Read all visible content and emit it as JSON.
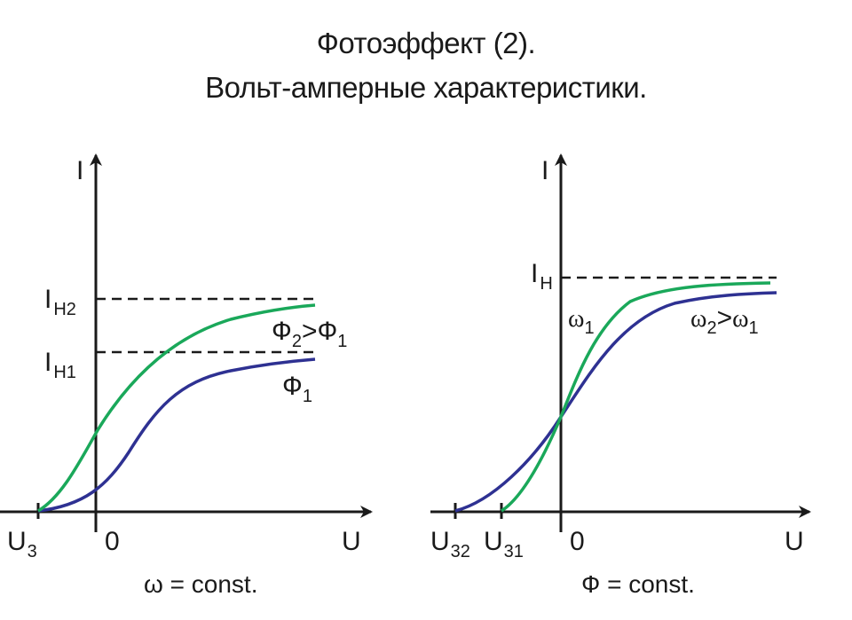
{
  "title": {
    "line1": "Фотоэффект (2).",
    "line2": "Вольт-амперные характеристики."
  },
  "left": {
    "axis_y": "I",
    "axis_x": "U",
    "origin": "0",
    "i_h2_main": "I",
    "i_h2_sub": "H2",
    "i_h1_main": "I",
    "i_h1_sub": "H1",
    "u_stop_main": "U",
    "u_stop_sub": "3",
    "curve_green_label": {
      "a": "Ф",
      "a_sub": "2",
      "gt": ">",
      "b": "Ф",
      "b_sub": "1"
    },
    "curve_blue_label": {
      "a": "Ф",
      "a_sub": "1"
    },
    "caption": "ω = const.",
    "colors": {
      "green": "#1aa85a",
      "blue": "#2e3192"
    }
  },
  "right": {
    "axis_y": "I",
    "axis_x": "U",
    "origin": "0",
    "i_h_main": "I",
    "i_h_sub": "H",
    "u32_main": "U",
    "u32_sub": "32",
    "u31_main": "U",
    "u31_sub": "31",
    "omega1": {
      "a": "ω",
      "a_sub": "1"
    },
    "omega_cmp": {
      "a": "ω",
      "a_sub": "2",
      "gt": ">",
      "b": "ω",
      "b_sub": "1"
    },
    "caption": "Ф = const.",
    "colors": {
      "green": "#1aa85a",
      "blue": "#2e3192"
    }
  }
}
